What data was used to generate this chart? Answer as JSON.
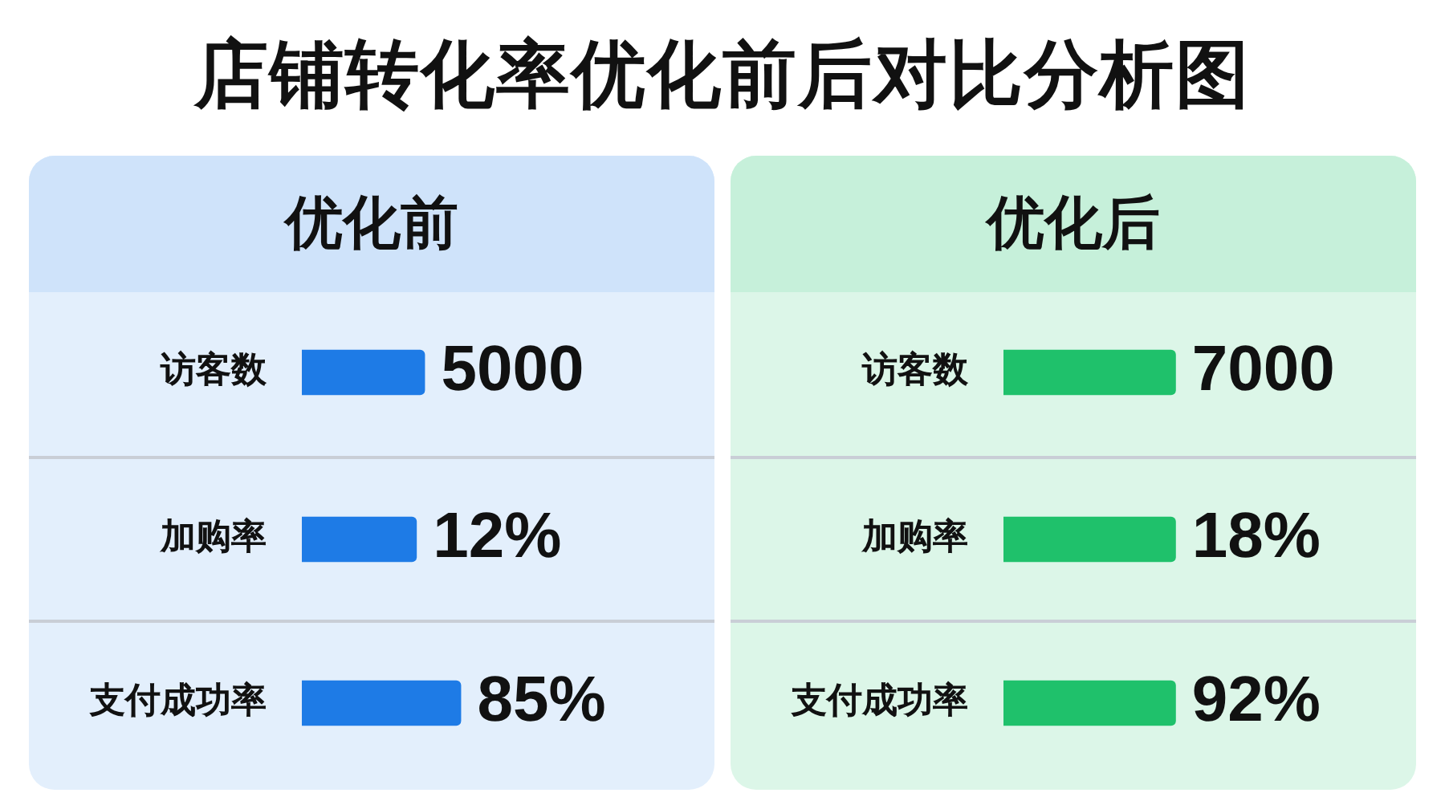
{
  "chart_data": [
    {
      "type": "bar",
      "orientation": "horizontal",
      "title": "店铺转化率优化前后对比分析图",
      "subtitle": "优化前",
      "categories": [
        "访客数"
      ],
      "values": [
        5000
      ],
      "value_labels": [
        "5000"
      ],
      "color": "#1e7be6",
      "tick_labels": "y"
    },
    {
      "type": "bar",
      "orientation": "horizontal",
      "categories": [
        "加购率"
      ],
      "values": [
        12
      ],
      "value_labels": [
        "12%"
      ],
      "color": "#1e7be6",
      "tick_labels": "y"
    },
    {
      "type": "bar",
      "orientation": "horizontal",
      "categories": [
        "支付成功率"
      ],
      "values": [
        85
      ],
      "value_labels": [
        "85%"
      ],
      "color": "#1e7be6",
      "tick_labels": "y"
    },
    {
      "type": "bar",
      "orientation": "horizontal",
      "subtitle": "优化后",
      "categories": [
        "访客数"
      ],
      "values": [
        7000
      ],
      "value_labels": [
        "7000"
      ],
      "color": "#1fc16b",
      "tick_labels": "y"
    },
    {
      "type": "bar",
      "orientation": "horizontal",
      "categories": [
        "加购率"
      ],
      "values": [
        18
      ],
      "value_labels": [
        "18%"
      ],
      "color": "#1fc16b",
      "tick_labels": "y"
    },
    {
      "type": "bar",
      "orientation": "horizontal",
      "categories": [
        "支付成功率"
      ],
      "values": [
        92
      ],
      "value_labels": [
        "92%"
      ],
      "color": "#1fc16b",
      "tick_labels": "y"
    }
  ]
}
